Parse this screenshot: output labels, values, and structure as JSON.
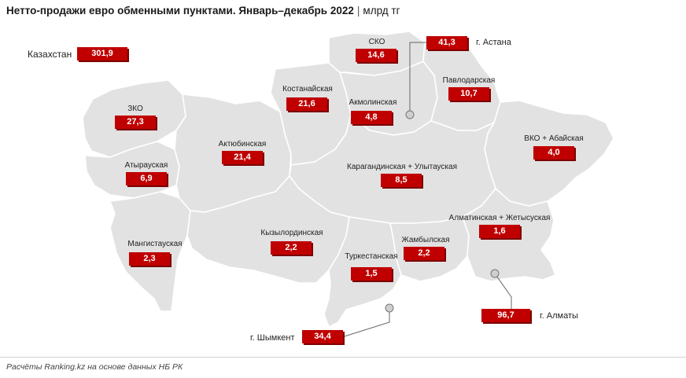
{
  "header": {
    "title": "Нетто-продажи евро обменными пунктами. Январь–декабрь 2022",
    "separator": "|",
    "unit": "млрд тг"
  },
  "total": {
    "label": "Казахстан",
    "value": "301,9"
  },
  "regions": [
    {
      "id": "zko",
      "label": "ЗКО",
      "value": "27,3"
    },
    {
      "id": "atyrau",
      "label": "Атырауская",
      "value": "6,9"
    },
    {
      "id": "mangistau",
      "label": "Мангистауская",
      "value": "2,3"
    },
    {
      "id": "aktobe",
      "label": "Актюбинская",
      "value": "21,4"
    },
    {
      "id": "kostanay",
      "label": "Костанайская",
      "value": "21,6"
    },
    {
      "id": "sko",
      "label": "СКО",
      "value": "14,6"
    },
    {
      "id": "akmola",
      "label": "Акмолинская",
      "value": "4,8"
    },
    {
      "id": "pavlodar",
      "label": "Павлодарская",
      "value": "10,7"
    },
    {
      "id": "vko",
      "label": "ВКО + Абайская",
      "value": "4,0"
    },
    {
      "id": "karaganda",
      "label": "Карагандинская + Улытауская",
      "value": "8,5"
    },
    {
      "id": "kyzylorda",
      "label": "Кызылординская",
      "value": "2,2"
    },
    {
      "id": "turkestan",
      "label": "Туркестанская",
      "value": "1,5"
    },
    {
      "id": "zhambyl",
      "label": "Жамбылская",
      "value": "2,2"
    },
    {
      "id": "almaty_obl",
      "label": "Алматинская + Жетысуская",
      "value": "1,6"
    }
  ],
  "cities": [
    {
      "id": "astana",
      "label": "г. Астана",
      "value": "41,3"
    },
    {
      "id": "almaty",
      "label": "г. Алматы",
      "value": "96,7"
    },
    {
      "id": "shymkent",
      "label": "г. Шымкент",
      "value": "34,4"
    }
  ],
  "colors": {
    "accent": "#c00000",
    "map_fill": "#e2e2e2",
    "border": "#ffffff"
  },
  "footer": {
    "source": "Расчёты Ranking.kz на основе данных НБ РК"
  }
}
